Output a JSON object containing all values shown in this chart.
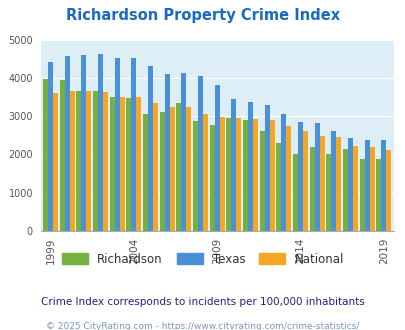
{
  "title": "Richardson Property Crime Index",
  "years": [
    1999,
    2000,
    2001,
    2002,
    2003,
    2004,
    2005,
    2006,
    2007,
    2008,
    2009,
    2010,
    2011,
    2012,
    2013,
    2014,
    2015,
    2016,
    2017,
    2018,
    2019
  ],
  "richardson": [
    3980,
    3950,
    3670,
    3660,
    3500,
    3480,
    3060,
    3100,
    3350,
    2870,
    2780,
    2950,
    2900,
    2620,
    2300,
    2010,
    2200,
    2020,
    2150,
    1880,
    1870
  ],
  "texas": [
    4410,
    4580,
    4610,
    4630,
    4510,
    4520,
    4310,
    4100,
    4130,
    4040,
    3810,
    3460,
    3380,
    3280,
    3060,
    2850,
    2830,
    2600,
    2430,
    2380,
    2390
  ],
  "national": [
    3600,
    3660,
    3670,
    3620,
    3510,
    3490,
    3350,
    3250,
    3230,
    3050,
    2970,
    2950,
    2920,
    2890,
    2740,
    2600,
    2490,
    2450,
    2230,
    2200,
    2120
  ],
  "richardson_color": "#76b041",
  "texas_color": "#4a90d9",
  "national_color": "#f5a623",
  "bg_color": "#ddeef7",
  "ylabel_max": 5000,
  "yticks": [
    0,
    1000,
    2000,
    3000,
    4000,
    5000
  ],
  "xlabel_years": [
    1999,
    2004,
    2009,
    2014,
    2019
  ],
  "subtitle": "Crime Index corresponds to incidents per 100,000 inhabitants",
  "copyright": "© 2025 CityRating.com - https://www.cityrating.com/crime-statistics/",
  "title_color": "#1a6abf",
  "subtitle_color": "#222288",
  "copyright_color": "#7799bb"
}
